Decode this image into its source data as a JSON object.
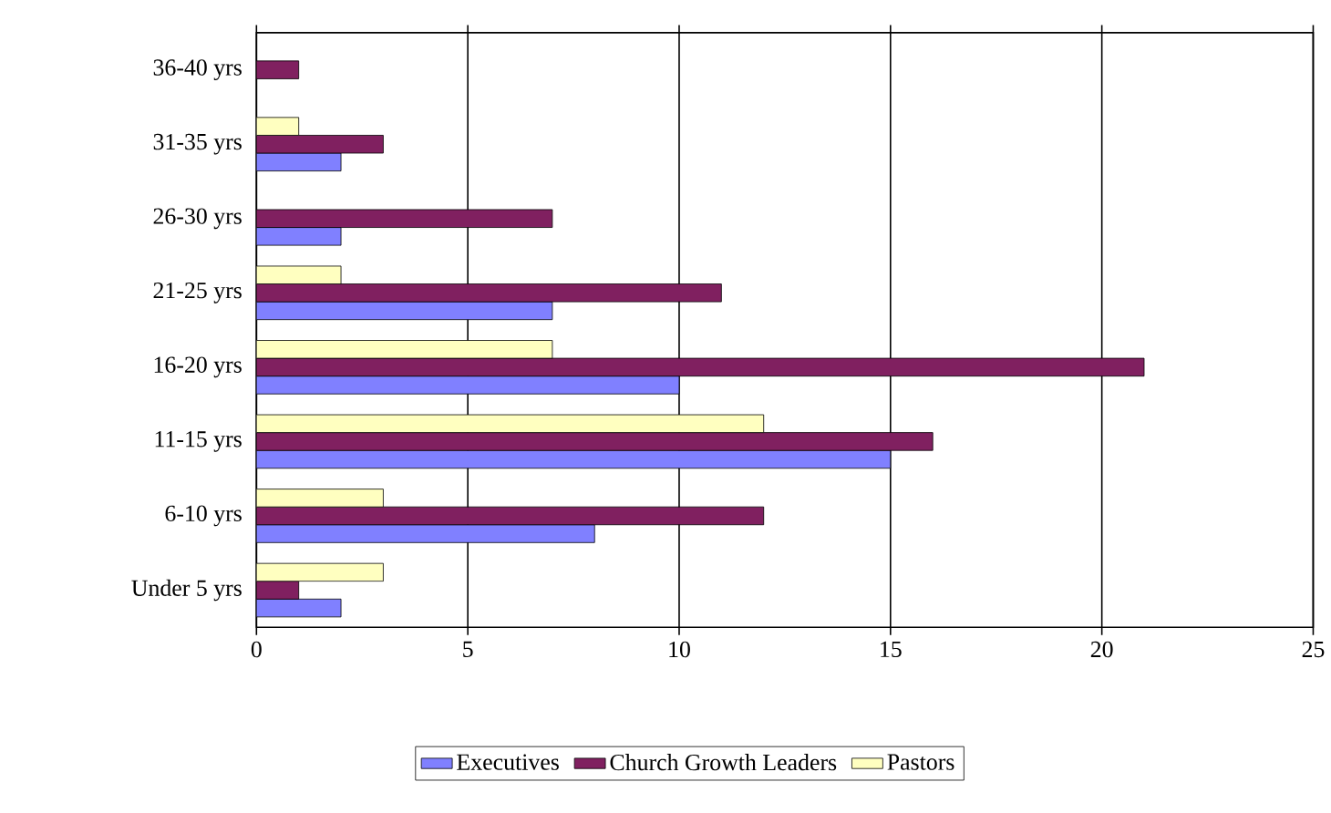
{
  "chart_data": {
    "type": "bar",
    "orientation": "horizontal",
    "categories": [
      "36-40 yrs",
      "31-35 yrs",
      "26-30 yrs",
      "21-25 yrs",
      "16-20 yrs",
      "11-15 yrs",
      "6-10 yrs",
      "Under 5 yrs"
    ],
    "series": [
      {
        "name": "Executives",
        "color": "#8080ff",
        "values": [
          0,
          2,
          2,
          7,
          10,
          15,
          8,
          2
        ]
      },
      {
        "name": "Church Growth Leaders",
        "color": "#802060",
        "values": [
          1,
          3,
          7,
          11,
          21,
          16,
          12,
          1
        ]
      },
      {
        "name": "Pastors",
        "color": "#ffffc0",
        "values": [
          0,
          1,
          0,
          2,
          7,
          12,
          3,
          3
        ]
      }
    ],
    "xlim": [
      0,
      25
    ],
    "xticks": [
      0,
      5,
      10,
      15,
      20,
      25
    ],
    "grid": "x",
    "legend": "bottom"
  }
}
